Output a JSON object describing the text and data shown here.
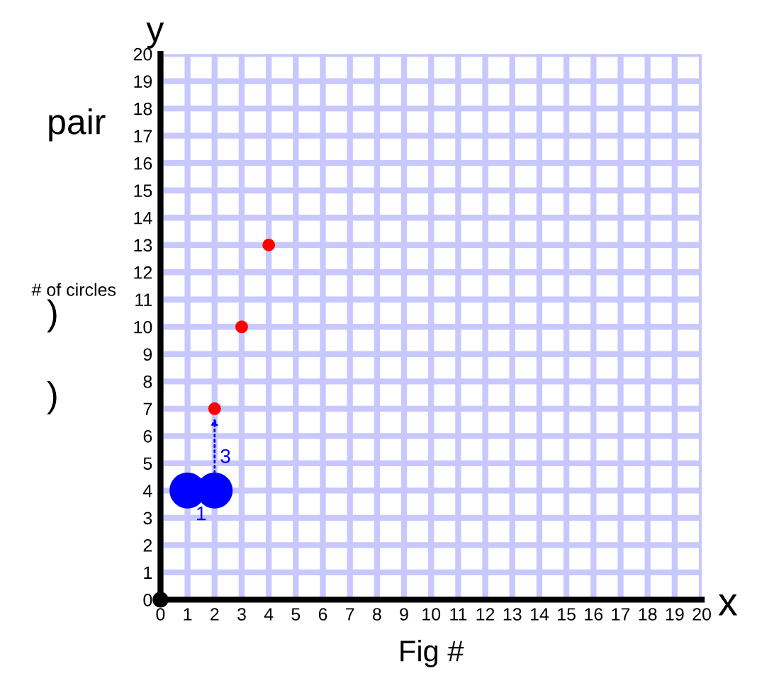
{
  "chart_data": {
    "type": "scatter",
    "xlabel": "Fig #",
    "ylabel": "# of circles",
    "annotations": [
      "pair",
      ")",
      ")",
      "x",
      "y",
      "1",
      "3"
    ],
    "series": [
      {
        "color": "#ff0000",
        "x": [
          2,
          3,
          4
        ],
        "values": [
          7,
          10,
          13
        ]
      },
      {
        "color": "#0000ff",
        "x": [
          1,
          2
        ],
        "values": [
          4,
          4
        ]
      },
      {
        "color": "#000000",
        "x": [
          0
        ],
        "values": [
          0
        ]
      }
    ],
    "xlim": [
      0,
      20
    ],
    "ylim": [
      0,
      20
    ],
    "xticks": [
      0,
      1,
      2,
      3,
      4,
      5,
      6,
      7,
      8,
      9,
      10,
      11,
      12,
      13,
      14,
      15,
      16,
      17,
      18,
      19,
      20
    ],
    "yticks": [
      0,
      1,
      2,
      3,
      4,
      5,
      6,
      7,
      8,
      9,
      10,
      11,
      12,
      13,
      14,
      15,
      16,
      17,
      18,
      19,
      20
    ],
    "grid": true,
    "marker": "circle",
    "legend": false
  }
}
